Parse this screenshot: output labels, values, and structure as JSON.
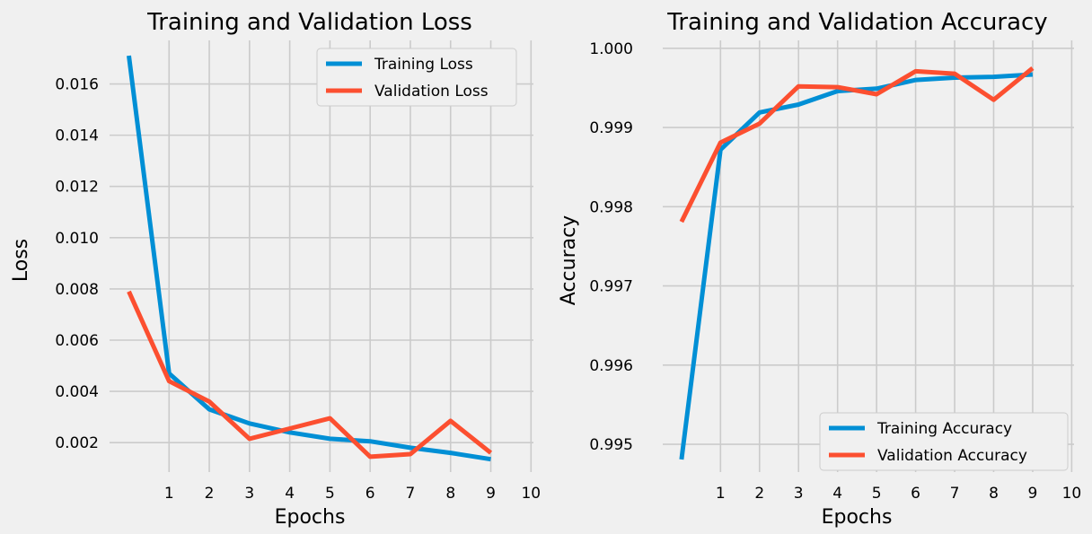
{
  "chart_data": [
    {
      "type": "line",
      "title": "Training and Validation Loss",
      "xlabel": "Epochs",
      "ylabel": "Loss",
      "xlim": [
        -0.48,
        10.06
      ],
      "ylim": [
        0.00085,
        0.0177
      ],
      "xticks": [
        1,
        2,
        3,
        4,
        5,
        6,
        7,
        8,
        9,
        10
      ],
      "yticks": [
        0.002,
        0.004,
        0.006,
        0.008,
        0.01,
        0.012,
        0.014,
        0.016
      ],
      "ytick_labels": [
        "0.002",
        "0.004",
        "0.006",
        "0.008",
        "0.010",
        "0.012",
        "0.014",
        "0.016"
      ],
      "grid": true,
      "legend_position": "top-right",
      "x": [
        0,
        1,
        2,
        3,
        4,
        5,
        6,
        7,
        8,
        9
      ],
      "series": [
        {
          "name": "Training Loss",
          "color": "#008fd5",
          "values": [
            0.0171,
            0.0047,
            0.0033,
            0.00275,
            0.0024,
            0.00215,
            0.00205,
            0.0018,
            0.0016,
            0.00135
          ]
        },
        {
          "name": "Validation Loss",
          "color": "#fc4f30",
          "values": [
            0.0079,
            0.0044,
            0.0036,
            0.00215,
            0.00255,
            0.00295,
            0.00145,
            0.00155,
            0.00285,
            0.0016
          ]
        }
      ]
    },
    {
      "type": "line",
      "title": "Training and Validation Accuracy",
      "xlabel": "Epochs",
      "ylabel": "Accuracy",
      "xlim": [
        -0.48,
        10.06
      ],
      "ylim": [
        0.99465,
        1.0001
      ],
      "xticks": [
        1,
        2,
        3,
        4,
        5,
        6,
        7,
        8,
        9,
        10
      ],
      "yticks": [
        0.995,
        0.996,
        0.997,
        0.998,
        0.999,
        1.0
      ],
      "ytick_labels": [
        "0.995",
        "0.996",
        "0.997",
        "0.998",
        "0.999",
        "1.000"
      ],
      "grid": true,
      "legend_position": "bottom-right",
      "x": [
        0,
        1,
        2,
        3,
        4,
        5,
        6,
        7,
        8,
        9
      ],
      "series": [
        {
          "name": "Training Accuracy",
          "color": "#008fd5",
          "values": [
            0.99481,
            0.99872,
            0.99919,
            0.99929,
            0.99946,
            0.99949,
            0.9996,
            0.99963,
            0.99964,
            0.99967
          ]
        },
        {
          "name": "Validation Accuracy",
          "color": "#fc4f30",
          "values": [
            0.99781,
            0.99881,
            0.99905,
            0.99952,
            0.99951,
            0.99942,
            0.99971,
            0.99968,
            0.99935,
            0.99975
          ]
        }
      ]
    }
  ]
}
